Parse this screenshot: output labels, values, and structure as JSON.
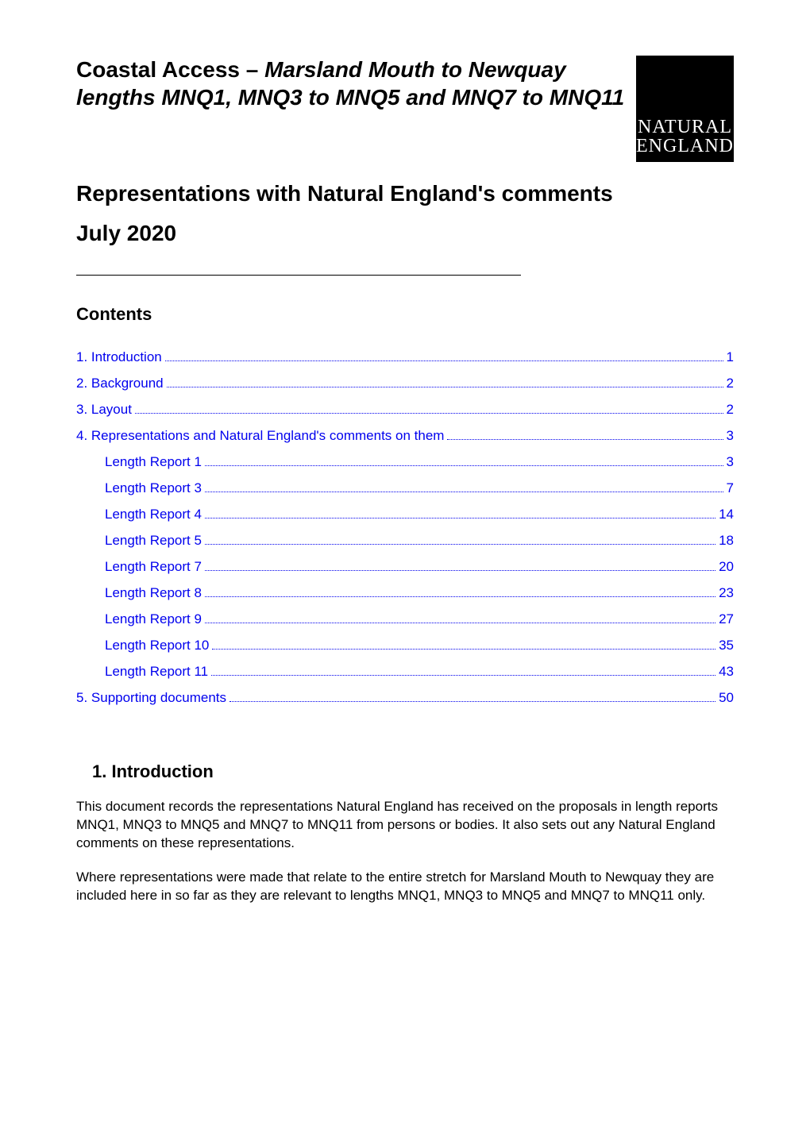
{
  "title_line1": "Coastal Access – ",
  "title_italic": "Marsland Mouth to Newquay lengths MNQ1, MNQ3 to MNQ5 and MNQ7 to MNQ11",
  "logo_line1": "NATURAL",
  "logo_line2": "ENGLAND",
  "main_heading": "Representations with Natural England's comments",
  "date": "July 2020",
  "contents_label": "Contents",
  "toc": [
    {
      "label": "1. Introduction",
      "page": "1",
      "indent": false
    },
    {
      "label": "2. Background",
      "page": "2",
      "indent": false
    },
    {
      "label": "3. Layout",
      "page": "2",
      "indent": false
    },
    {
      "label": "4. Representations and Natural England's comments on them",
      "page": "3",
      "indent": false
    },
    {
      "label": "Length Report 1",
      "page": "3",
      "indent": true
    },
    {
      "label": "Length Report 3",
      "page": "7",
      "indent": true
    },
    {
      "label": "Length Report 4",
      "page": "14",
      "indent": true
    },
    {
      "label": "Length Report 5",
      "page": "18",
      "indent": true
    },
    {
      "label": "Length Report 7",
      "page": "20",
      "indent": true
    },
    {
      "label": "Length Report 8",
      "page": "23",
      "indent": true
    },
    {
      "label": "Length Report 9",
      "page": "27",
      "indent": true
    },
    {
      "label": "Length Report 10",
      "page": "35",
      "indent": true
    },
    {
      "label": "Length Report 11",
      "page": "43",
      "indent": true
    },
    {
      "label": "5. Supporting documents",
      "page": "50",
      "indent": false
    }
  ],
  "section1_heading": "1. Introduction",
  "para1": "This document records the representations Natural England has received on the proposals in length reports MNQ1, MNQ3 to MNQ5 and MNQ7 to MNQ11 from persons or bodies. It also sets out any Natural England comments on these representations.",
  "para2": "Where representations were made that relate to the entire stretch for Marsland Mouth to Newquay they are included here in so far as they are relevant to lengths MNQ1, MNQ3 to MNQ5 and MNQ7 to MNQ11 only.",
  "colors": {
    "link": "#0000ee",
    "text": "#000000",
    "background": "#ffffff",
    "logo_bg": "#000000",
    "logo_text": "#ffffff"
  }
}
